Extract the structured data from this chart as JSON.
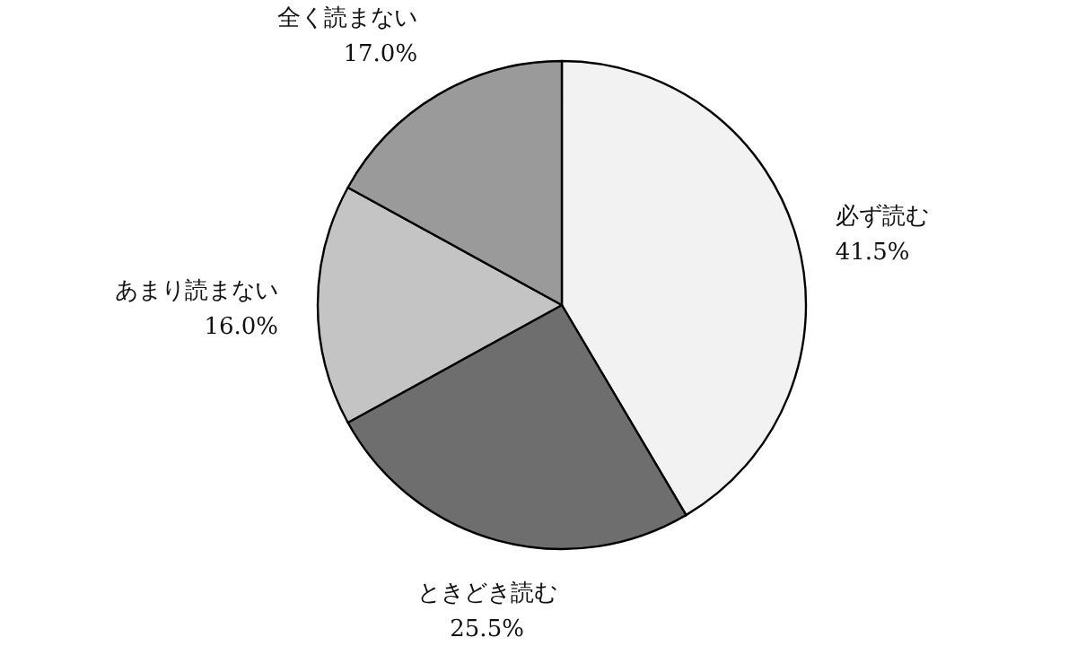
{
  "chart_data": {
    "type": "pie",
    "categories": [
      "必ず読む",
      "ときどき読む",
      "あまり読まない",
      "全く読まない"
    ],
    "values": [
      41.5,
      25.5,
      16.0,
      17.0
    ],
    "value_labels": [
      "41.5%",
      "25.5%",
      "16.0%",
      "17.0%"
    ],
    "colors": [
      "#f2f2f2",
      "#6e6e6e",
      "#c4c4c4",
      "#9a9a9a"
    ]
  }
}
